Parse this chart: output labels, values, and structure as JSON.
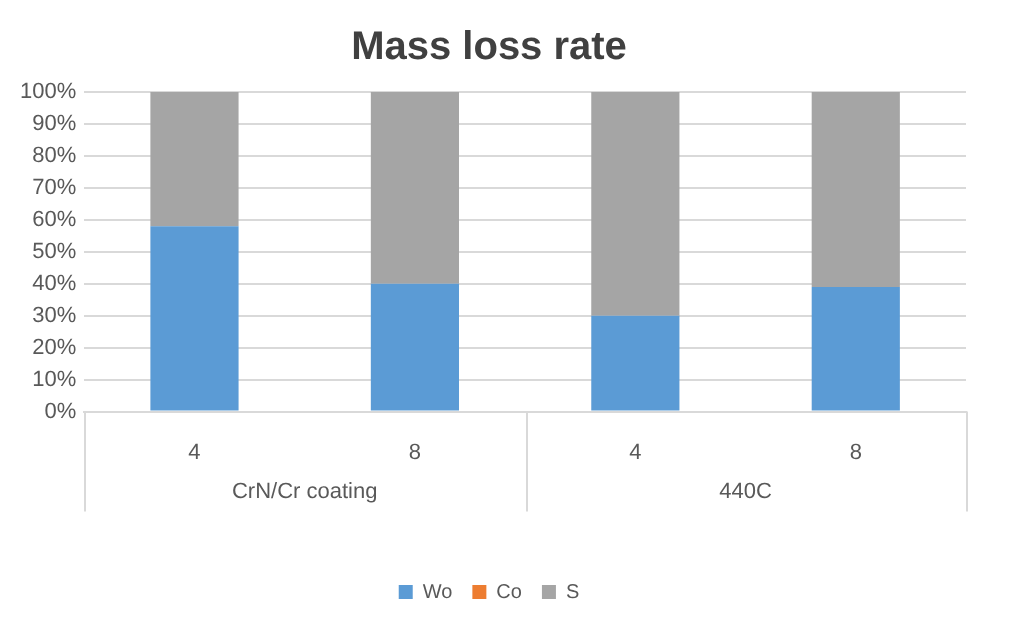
{
  "chart_data": {
    "type": "bar",
    "title": "Mass loss rate",
    "categories": [
      "4",
      "8",
      "4",
      "8"
    ],
    "stacked": true,
    "series": [
      {
        "name": "Wo",
        "color": "#5b9bd5",
        "values": [
          58,
          40,
          30,
          39
        ]
      },
      {
        "name": "Co",
        "color": "#ed7d31",
        "values": [
          0,
          0,
          0,
          0
        ]
      },
      {
        "name": "S",
        "color": "#a5a5a5",
        "values": [
          42,
          60,
          70,
          61
        ]
      }
    ],
    "ylim": [
      0,
      100
    ],
    "yticks": [
      {
        "value": 0,
        "label": "0%"
      },
      {
        "value": 10,
        "label": "10%"
      },
      {
        "value": 20,
        "label": "20%"
      },
      {
        "value": 30,
        "label": "30%"
      },
      {
        "value": 40,
        "label": "40%"
      },
      {
        "value": 50,
        "label": "50%"
      },
      {
        "value": 60,
        "label": "60%"
      },
      {
        "value": 70,
        "label": "70%"
      },
      {
        "value": 80,
        "label": "80%"
      },
      {
        "value": 90,
        "label": "90%"
      },
      {
        "value": 100,
        "label": "100%"
      }
    ],
    "annotations": [
      "CrN/Cr coating",
      "440C"
    ],
    "grid": "y",
    "legend": "bottom"
  }
}
